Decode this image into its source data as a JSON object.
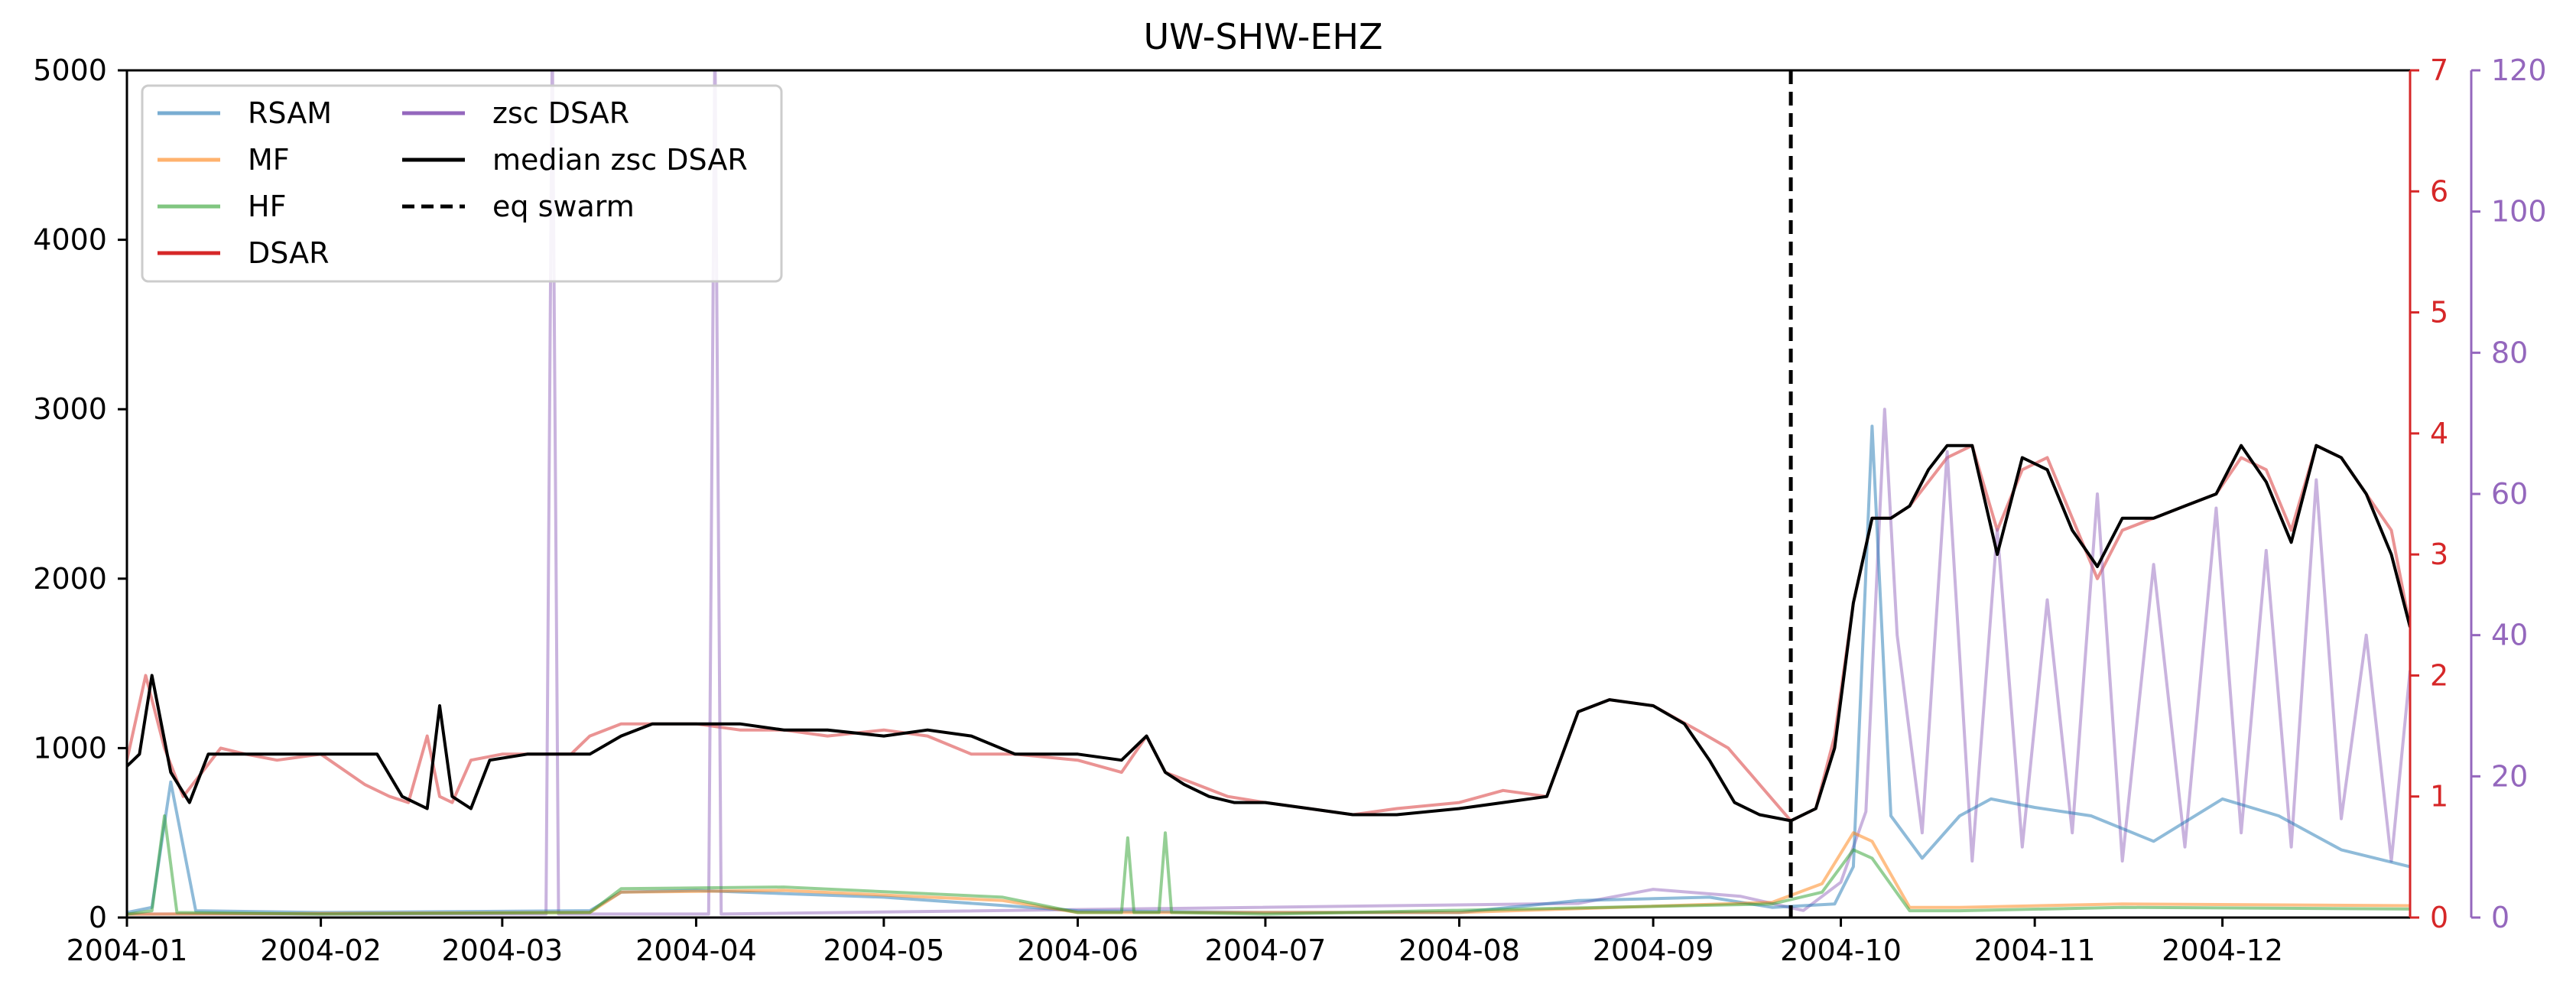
{
  "chart_data": {
    "type": "line",
    "title": "UW-SHW-EHZ",
    "xlabel": "",
    "ylabel": "",
    "x_ticks": [
      "2004-01",
      "2004-02",
      "2004-03",
      "2004-04",
      "2004-05",
      "2004-06",
      "2004-07",
      "2004-08",
      "2004-09",
      "2004-10",
      "2004-11",
      "2004-12"
    ],
    "xlim": [
      "2004-01-01",
      "2004-12-31"
    ],
    "ylim": [
      0,
      5000
    ],
    "y_ticks": [
      0,
      1000,
      2000,
      3000,
      4000,
      5000
    ],
    "ylim_right": [
      0,
      7
    ],
    "y_ticks_right": [
      0,
      1,
      2,
      3,
      4,
      5,
      6,
      7
    ],
    "ylim_right2": [
      0,
      120
    ],
    "y_ticks_right2": [
      0,
      20,
      40,
      60,
      80,
      100,
      120
    ],
    "colors": {
      "RSAM": "#1f77b4",
      "MF": "#ff7f0e",
      "HF": "#2ca02c",
      "DSAR": "#d62728",
      "zsc DSAR": "#9467bd",
      "median zsc DSAR": "#000000",
      "eq swarm": "#000000",
      "right_axis": "#d62728",
      "right_axis2": "#9467bd"
    },
    "grid": false,
    "legend_position": "top-left",
    "legend": [
      {
        "label": "RSAM",
        "style": "solid"
      },
      {
        "label": "MF",
        "style": "solid"
      },
      {
        "label": "HF",
        "style": "solid"
      },
      {
        "label": "DSAR",
        "style": "solid"
      },
      {
        "label": "zsc DSAR",
        "style": "solid"
      },
      {
        "label": "median zsc DSAR",
        "style": "solid"
      },
      {
        "label": "eq swarm",
        "style": "dashed"
      }
    ],
    "eq_swarm_date": "2004-09-23",
    "series": [
      {
        "name": "DSAR",
        "axis": "right",
        "dates": [
          "2004-01-01",
          "2004-01-04",
          "2004-01-07",
          "2004-01-10",
          "2004-01-13",
          "2004-01-16",
          "2004-01-20",
          "2004-01-25",
          "2004-02-01",
          "2004-02-08",
          "2004-02-12",
          "2004-02-15",
          "2004-02-18",
          "2004-02-20",
          "2004-02-22",
          "2004-02-25",
          "2004-03-01",
          "2004-03-05",
          "2004-03-09",
          "2004-03-12",
          "2004-03-15",
          "2004-03-20",
          "2004-03-25",
          "2004-04-01",
          "2004-04-08",
          "2004-04-15",
          "2004-04-22",
          "2004-05-01",
          "2004-05-08",
          "2004-05-15",
          "2004-05-22",
          "2004-06-01",
          "2004-06-08",
          "2004-06-12",
          "2004-06-15",
          "2004-06-20",
          "2004-06-25",
          "2004-07-01",
          "2004-07-08",
          "2004-07-15",
          "2004-07-22",
          "2004-08-01",
          "2004-08-08",
          "2004-08-15",
          "2004-08-20",
          "2004-08-25",
          "2004-09-01",
          "2004-09-08",
          "2004-09-13",
          "2004-09-18",
          "2004-09-23",
          "2004-09-27",
          "2004-09-30",
          "2004-10-03",
          "2004-10-06",
          "2004-10-09",
          "2004-10-12",
          "2004-10-15",
          "2004-10-18",
          "2004-10-22",
          "2004-10-26",
          "2004-10-30",
          "2004-11-03",
          "2004-11-07",
          "2004-11-11",
          "2004-11-15",
          "2004-11-20",
          "2004-11-25",
          "2004-11-30",
          "2004-12-04",
          "2004-12-08",
          "2004-12-12",
          "2004-12-16",
          "2004-12-20",
          "2004-12-24",
          "2004-12-28",
          "2004-12-31"
        ],
        "values": [
          1.3,
          2.0,
          1.4,
          1.0,
          1.2,
          1.4,
          1.35,
          1.3,
          1.35,
          1.1,
          1.0,
          0.95,
          1.5,
          1.0,
          0.95,
          1.3,
          1.35,
          1.35,
          1.35,
          1.35,
          1.5,
          1.6,
          1.6,
          1.6,
          1.55,
          1.55,
          1.5,
          1.55,
          1.5,
          1.35,
          1.35,
          1.3,
          1.2,
          1.5,
          1.2,
          1.1,
          1.0,
          0.95,
          0.9,
          0.85,
          0.9,
          0.95,
          1.05,
          1.0,
          1.7,
          1.8,
          1.75,
          1.55,
          1.4,
          1.1,
          0.8,
          0.9,
          1.5,
          2.6,
          3.3,
          3.3,
          3.4,
          3.6,
          3.8,
          3.9,
          3.2,
          3.7,
          3.8,
          3.3,
          2.8,
          3.2,
          3.3,
          3.4,
          3.5,
          3.8,
          3.7,
          3.2,
          3.9,
          3.8,
          3.5,
          3.2,
          2.4
        ]
      },
      {
        "name": "median zsc DSAR",
        "axis": "right",
        "dates": [
          "2004-01-01",
          "2004-01-03",
          "2004-01-05",
          "2004-01-08",
          "2004-01-11",
          "2004-01-14",
          "2004-01-18",
          "2004-01-22",
          "2004-02-01",
          "2004-02-10",
          "2004-02-14",
          "2004-02-18",
          "2004-02-20",
          "2004-02-22",
          "2004-02-25",
          "2004-02-28",
          "2004-03-05",
          "2004-03-10",
          "2004-03-15",
          "2004-03-20",
          "2004-03-25",
          "2004-04-01",
          "2004-04-08",
          "2004-04-15",
          "2004-04-22",
          "2004-05-01",
          "2004-05-08",
          "2004-05-15",
          "2004-05-22",
          "2004-06-01",
          "2004-06-08",
          "2004-06-12",
          "2004-06-15",
          "2004-06-18",
          "2004-06-22",
          "2004-06-26",
          "2004-07-01",
          "2004-07-08",
          "2004-07-15",
          "2004-07-22",
          "2004-08-01",
          "2004-08-08",
          "2004-08-15",
          "2004-08-20",
          "2004-08-25",
          "2004-09-01",
          "2004-09-06",
          "2004-09-10",
          "2004-09-14",
          "2004-09-18",
          "2004-09-23",
          "2004-09-27",
          "2004-09-30",
          "2004-10-03",
          "2004-10-06",
          "2004-10-09",
          "2004-10-12",
          "2004-10-15",
          "2004-10-18",
          "2004-10-22",
          "2004-10-26",
          "2004-10-30",
          "2004-11-03",
          "2004-11-07",
          "2004-11-11",
          "2004-11-15",
          "2004-11-20",
          "2004-11-25",
          "2004-11-30",
          "2004-12-04",
          "2004-12-08",
          "2004-12-12",
          "2004-12-16",
          "2004-12-20",
          "2004-12-24",
          "2004-12-28",
          "2004-12-31"
        ],
        "values": [
          1.25,
          1.35,
          2.0,
          1.2,
          0.95,
          1.35,
          1.35,
          1.35,
          1.35,
          1.35,
          1.0,
          0.9,
          1.75,
          1.0,
          0.9,
          1.3,
          1.35,
          1.35,
          1.35,
          1.5,
          1.6,
          1.6,
          1.6,
          1.55,
          1.55,
          1.5,
          1.55,
          1.5,
          1.35,
          1.35,
          1.3,
          1.5,
          1.2,
          1.1,
          1.0,
          0.95,
          0.95,
          0.9,
          0.85,
          0.85,
          0.9,
          0.95,
          1.0,
          1.7,
          1.8,
          1.75,
          1.6,
          1.3,
          0.95,
          0.85,
          0.8,
          0.9,
          1.4,
          2.6,
          3.3,
          3.3,
          3.4,
          3.7,
          3.9,
          3.9,
          3.0,
          3.8,
          3.7,
          3.2,
          2.9,
          3.3,
          3.3,
          3.4,
          3.5,
          3.9,
          3.6,
          3.1,
          3.9,
          3.8,
          3.5,
          3.0,
          2.4
        ]
      },
      {
        "name": "zsc DSAR",
        "axis": "right2",
        "dates": [
          "2004-01-01",
          "2004-03-08",
          "2004-03-09",
          "2004-03-10",
          "2004-04-03",
          "2004-04-04",
          "2004-04-05",
          "2004-08-20",
          "2004-09-01",
          "2004-09-15",
          "2004-09-25",
          "2004-10-01",
          "2004-10-05",
          "2004-10-08",
          "2004-10-10",
          "2004-10-14",
          "2004-10-18",
          "2004-10-22",
          "2004-10-26",
          "2004-10-30",
          "2004-11-03",
          "2004-11-07",
          "2004-11-11",
          "2004-11-15",
          "2004-11-20",
          "2004-11-25",
          "2004-11-30",
          "2004-12-04",
          "2004-12-08",
          "2004-12-12",
          "2004-12-16",
          "2004-12-20",
          "2004-12-24",
          "2004-12-28",
          "2004-12-31"
        ],
        "values": [
          0.5,
          0.5,
          125,
          0.5,
          0.5,
          125,
          0.5,
          2,
          4,
          3,
          1,
          5,
          15,
          72,
          40,
          12,
          66,
          8,
          55,
          10,
          45,
          12,
          60,
          8,
          50,
          10,
          58,
          12,
          52,
          10,
          62,
          14,
          40,
          8,
          35
        ]
      },
      {
        "name": "RSAM",
        "axis": "left",
        "dates": [
          "2004-01-01",
          "2004-01-05",
          "2004-01-08",
          "2004-01-12",
          "2004-02-01",
          "2004-03-15",
          "2004-03-20",
          "2004-04-01",
          "2004-05-01",
          "2004-06-01",
          "2004-07-01",
          "2004-08-01",
          "2004-08-20",
          "2004-09-10",
          "2004-09-20",
          "2004-09-30",
          "2004-10-03",
          "2004-10-06",
          "2004-10-09",
          "2004-10-14",
          "2004-10-20",
          "2004-10-25",
          "2004-11-01",
          "2004-11-10",
          "2004-11-20",
          "2004-12-01",
          "2004-12-10",
          "2004-12-20",
          "2004-12-31"
        ],
        "values": [
          30,
          60,
          800,
          40,
          30,
          40,
          150,
          160,
          120,
          40,
          30,
          30,
          100,
          120,
          60,
          80,
          300,
          2900,
          600,
          350,
          600,
          700,
          650,
          600,
          450,
          700,
          600,
          400,
          300
        ]
      },
      {
        "name": "MF",
        "axis": "left",
        "dates": [
          "2004-01-01",
          "2004-03-15",
          "2004-03-20",
          "2004-04-15",
          "2004-05-20",
          "2004-06-01",
          "2004-08-01",
          "2004-09-20",
          "2004-09-28",
          "2004-10-03",
          "2004-10-06",
          "2004-10-12",
          "2004-10-20",
          "2004-11-15",
          "2004-12-31"
        ],
        "values": [
          20,
          30,
          150,
          160,
          100,
          30,
          30,
          90,
          200,
          500,
          450,
          60,
          60,
          80,
          70
        ]
      },
      {
        "name": "HF",
        "axis": "left",
        "dates": [
          "2004-01-01",
          "2004-01-05",
          "2004-01-07",
          "2004-01-09",
          "2004-02-01",
          "2004-03-15",
          "2004-03-20",
          "2004-04-15",
          "2004-05-20",
          "2004-06-01",
          "2004-06-08",
          "2004-06-09",
          "2004-06-10",
          "2004-06-14",
          "2004-06-15",
          "2004-06-16",
          "2004-07-01",
          "2004-09-20",
          "2004-09-28",
          "2004-10-03",
          "2004-10-06",
          "2004-10-12",
          "2004-10-20",
          "2004-11-15",
          "2004-12-31"
        ],
        "values": [
          20,
          40,
          600,
          30,
          20,
          30,
          170,
          180,
          120,
          30,
          30,
          470,
          30,
          30,
          500,
          30,
          20,
          80,
          150,
          400,
          350,
          40,
          40,
          60,
          50
        ]
      }
    ]
  }
}
